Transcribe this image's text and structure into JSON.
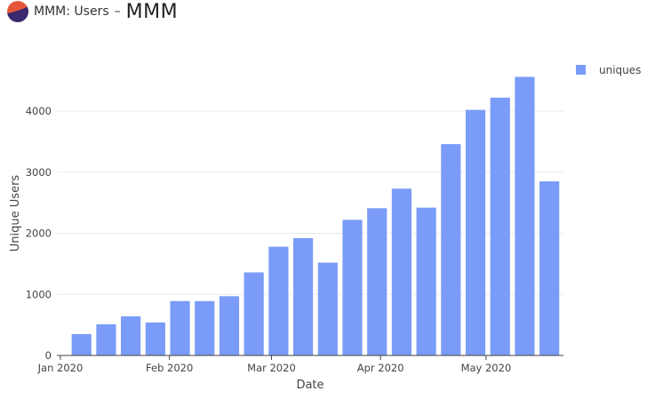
{
  "header": {
    "app_title": "MMM: Users",
    "separator": "–",
    "brand": "MMM",
    "logo_colors": {
      "top": "#e8563a",
      "bottom": "#3b2a6e"
    }
  },
  "chart_data": {
    "type": "bar",
    "x": [
      "2020-01-07",
      "2020-01-14",
      "2020-01-21",
      "2020-01-28",
      "2020-02-04",
      "2020-02-11",
      "2020-02-18",
      "2020-02-25",
      "2020-03-03",
      "2020-03-10",
      "2020-03-17",
      "2020-03-24",
      "2020-03-31",
      "2020-04-07",
      "2020-04-14",
      "2020-04-21",
      "2020-04-28",
      "2020-05-05",
      "2020-05-12",
      "2020-05-19"
    ],
    "series": [
      {
        "name": "uniques",
        "color": "#7a9cf8",
        "values": [
          350,
          510,
          640,
          540,
          890,
          890,
          970,
          1360,
          1780,
          1920,
          1520,
          2220,
          2410,
          2730,
          2420,
          3460,
          4020,
          4220,
          4560,
          2850
        ]
      }
    ],
    "xlabel": "Date",
    "ylabel": "Unique Users",
    "x_ticks": [
      {
        "date": "2020-01-01",
        "label": "Jan 2020"
      },
      {
        "date": "2020-02-01",
        "label": "Feb 2020"
      },
      {
        "date": "2020-03-01",
        "label": "Mar 2020"
      },
      {
        "date": "2020-04-01",
        "label": "Apr 2020"
      },
      {
        "date": "2020-05-01",
        "label": "May 2020"
      }
    ],
    "y_ticks": [
      0,
      1000,
      2000,
      3000,
      4000
    ],
    "ylim": [
      0,
      4800
    ],
    "xlim": [
      "2019-12-31",
      "2020-05-23"
    ],
    "grid": true,
    "legend_position": "top-right"
  }
}
